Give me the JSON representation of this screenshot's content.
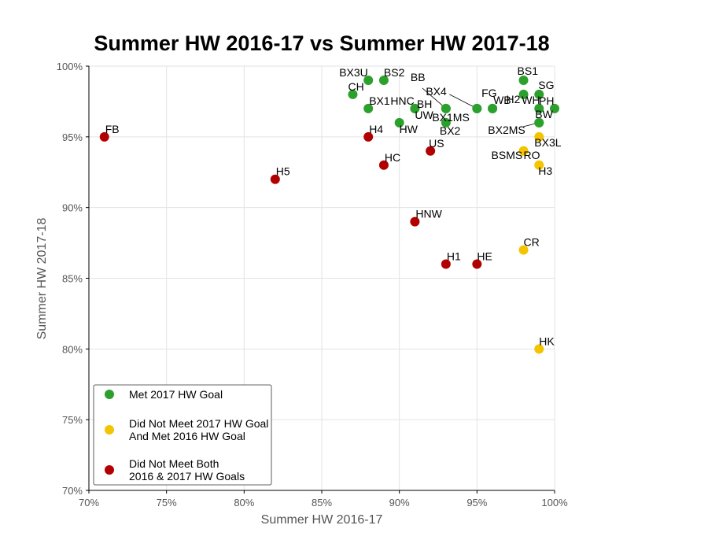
{
  "chart_data": {
    "type": "scatter",
    "title": "Summer HW 2016-17 vs Summer HW 2017-18",
    "xlabel": "Summer HW 2016-17",
    "ylabel": "Summer HW 2017-18",
    "xlim": [
      70,
      100
    ],
    "ylim": [
      70,
      100
    ],
    "x_ticks": [
      70,
      75,
      80,
      85,
      90,
      95,
      100
    ],
    "y_ticks": [
      70,
      75,
      80,
      85,
      90,
      95,
      100
    ],
    "x_tick_labels": [
      "70%",
      "75%",
      "80%",
      "85%",
      "90%",
      "95%",
      "100%"
    ],
    "y_tick_labels": [
      "70%",
      "75%",
      "80%",
      "85%",
      "90%",
      "95%",
      "100%"
    ],
    "grid": true,
    "legend_position": "bottom-left",
    "series": [
      {
        "name": "Met 2017 HW Goal",
        "color": "#2ca02c",
        "points": [
          {
            "label": "BX3U",
            "x": 88,
            "y": 99
          },
          {
            "label": "BS2",
            "x": 89,
            "y": 99
          },
          {
            "label": "CH",
            "x": 87,
            "y": 98
          },
          {
            "label": "BX1",
            "x": 88,
            "y": 97
          },
          {
            "label": "HNC",
            "x": 91,
            "y": 97
          },
          {
            "label": "UW",
            "x": 91,
            "y": 97
          },
          {
            "label": "HW",
            "x": 90,
            "y": 96
          },
          {
            "label": "BB",
            "x": 93,
            "y": 97
          },
          {
            "label": "BX4",
            "x": 95,
            "y": 97
          },
          {
            "label": "BH",
            "x": 93,
            "y": 97
          },
          {
            "label": "BX2",
            "x": 93,
            "y": 96
          },
          {
            "label": "FG",
            "x": 96,
            "y": 97
          },
          {
            "label": "WB",
            "x": 96,
            "y": 97
          },
          {
            "label": "BX1MS",
            "x": 95,
            "y": 97
          },
          {
            "label": "BS1",
            "x": 98,
            "y": 99
          },
          {
            "label": "H2",
            "x": 98,
            "y": 98
          },
          {
            "label": "SG",
            "x": 99,
            "y": 98
          },
          {
            "label": "WH",
            "x": 99,
            "y": 97
          },
          {
            "label": "PH",
            "x": 100,
            "y": 97
          },
          {
            "label": "BW",
            "x": 99,
            "y": 96
          },
          {
            "label": "BX2MS",
            "x": 99,
            "y": 96
          }
        ]
      },
      {
        "name": "Did Not Meet 2017 HW Goal\nAnd Met 2016 HW Goal",
        "color": "#f5c400",
        "points": [
          {
            "label": "BX3L",
            "x": 99,
            "y": 95
          },
          {
            "label": "RO",
            "x": 98,
            "y": 94
          },
          {
            "label": "BSMS",
            "x": 98,
            "y": 94
          },
          {
            "label": "H3",
            "x": 99,
            "y": 93
          },
          {
            "label": "CR",
            "x": 98,
            "y": 87
          },
          {
            "label": "HK",
            "x": 99,
            "y": 80
          }
        ]
      },
      {
        "name": "Did Not Meet Both\n2016 & 2017 HW Goals",
        "color": "#b20000",
        "points": [
          {
            "label": "FB",
            "x": 71,
            "y": 95
          },
          {
            "label": "H5",
            "x": 82,
            "y": 92
          },
          {
            "label": "H4",
            "x": 88,
            "y": 95
          },
          {
            "label": "HC",
            "x": 89,
            "y": 93
          },
          {
            "label": "US",
            "x": 92,
            "y": 94
          },
          {
            "label": "HNW",
            "x": 91,
            "y": 89
          },
          {
            "label": "H1",
            "x": 93,
            "y": 86
          },
          {
            "label": "HE",
            "x": 95,
            "y": 86
          }
        ]
      }
    ]
  }
}
